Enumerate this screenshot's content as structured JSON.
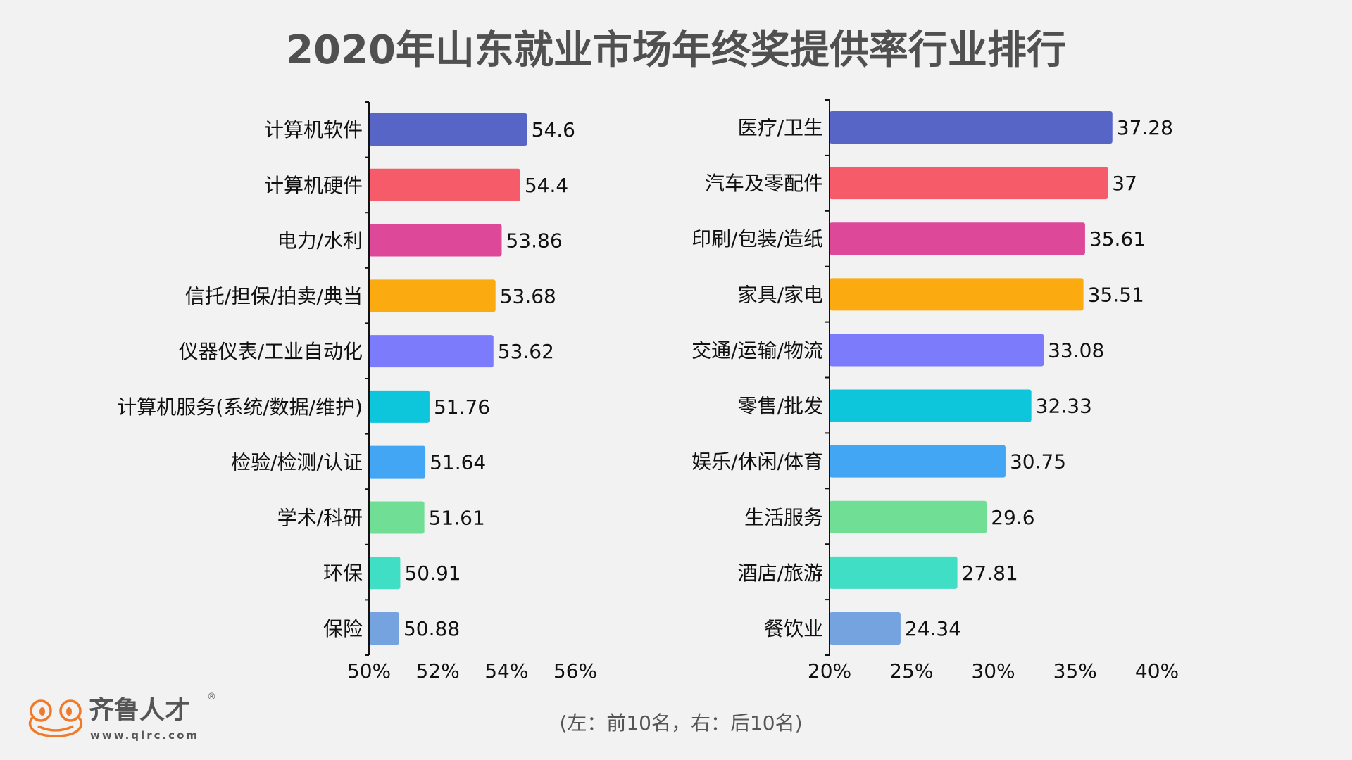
{
  "title": "2020年山东就业市场年终奖提供率行业排行",
  "footnote": "(左：前10名，右：后10名)",
  "logo": {
    "name": "齐鲁人才",
    "url": "www.qlrc.com",
    "mark": "®",
    "color": "#f07a2a"
  },
  "chart_data": [
    {
      "type": "bar",
      "orientation": "horizontal",
      "categories": [
        "计算机软件",
        "计算机硬件",
        "电力/水利",
        "信托/担保/拍卖/典当",
        "仪器仪表/工业自动化",
        "计算机服务(系统/数据/维护)",
        "检验/检测/认证",
        "学术/科研",
        "环保",
        "保险"
      ],
      "values": [
        54.6,
        54.4,
        53.86,
        53.68,
        53.62,
        51.76,
        51.64,
        51.61,
        50.91,
        50.88
      ],
      "value_labels": [
        "54.6",
        "54.4",
        "53.86",
        "53.68",
        "53.62",
        "51.76",
        "51.64",
        "51.61",
        "50.91",
        "50.88"
      ],
      "xlim": [
        50,
        56
      ],
      "xticks": [
        "50%",
        "52%",
        "54%",
        "56%"
      ],
      "xtick_values": [
        50,
        52,
        54,
        56
      ],
      "colors": [
        "#5766c6",
        "#f65b6a",
        "#de4899",
        "#fbab10",
        "#7b7bfb",
        "#0dc6db",
        "#42a6f5",
        "#71de95",
        "#40dec5",
        "#75a3e0"
      ],
      "grid": false
    },
    {
      "type": "bar",
      "orientation": "horizontal",
      "categories": [
        "医疗/卫生",
        "汽车及零配件",
        "印刷/包装/造纸",
        "家具/家电",
        "交通/运输/物流",
        "零售/批发",
        "娱乐/休闲/体育",
        "生活服务",
        "酒店/旅游",
        "餐饮业"
      ],
      "values": [
        37.28,
        37,
        35.61,
        35.51,
        33.08,
        32.33,
        30.75,
        29.6,
        27.81,
        24.34
      ],
      "value_labels": [
        "37.28",
        "37",
        "35.61",
        "35.51",
        "33.08",
        "32.33",
        "30.75",
        "29.6",
        "27.81",
        "24.34"
      ],
      "xlim": [
        20,
        40
      ],
      "xticks": [
        "20%",
        "25%",
        "30%",
        "35%",
        "40%"
      ],
      "xtick_values": [
        20,
        25,
        30,
        35,
        40
      ],
      "colors": [
        "#5766c6",
        "#f65b6a",
        "#de4899",
        "#fbab10",
        "#7b7bfb",
        "#0dc6db",
        "#42a6f5",
        "#71de95",
        "#40dec5",
        "#75a3e0"
      ],
      "grid": false
    }
  ]
}
